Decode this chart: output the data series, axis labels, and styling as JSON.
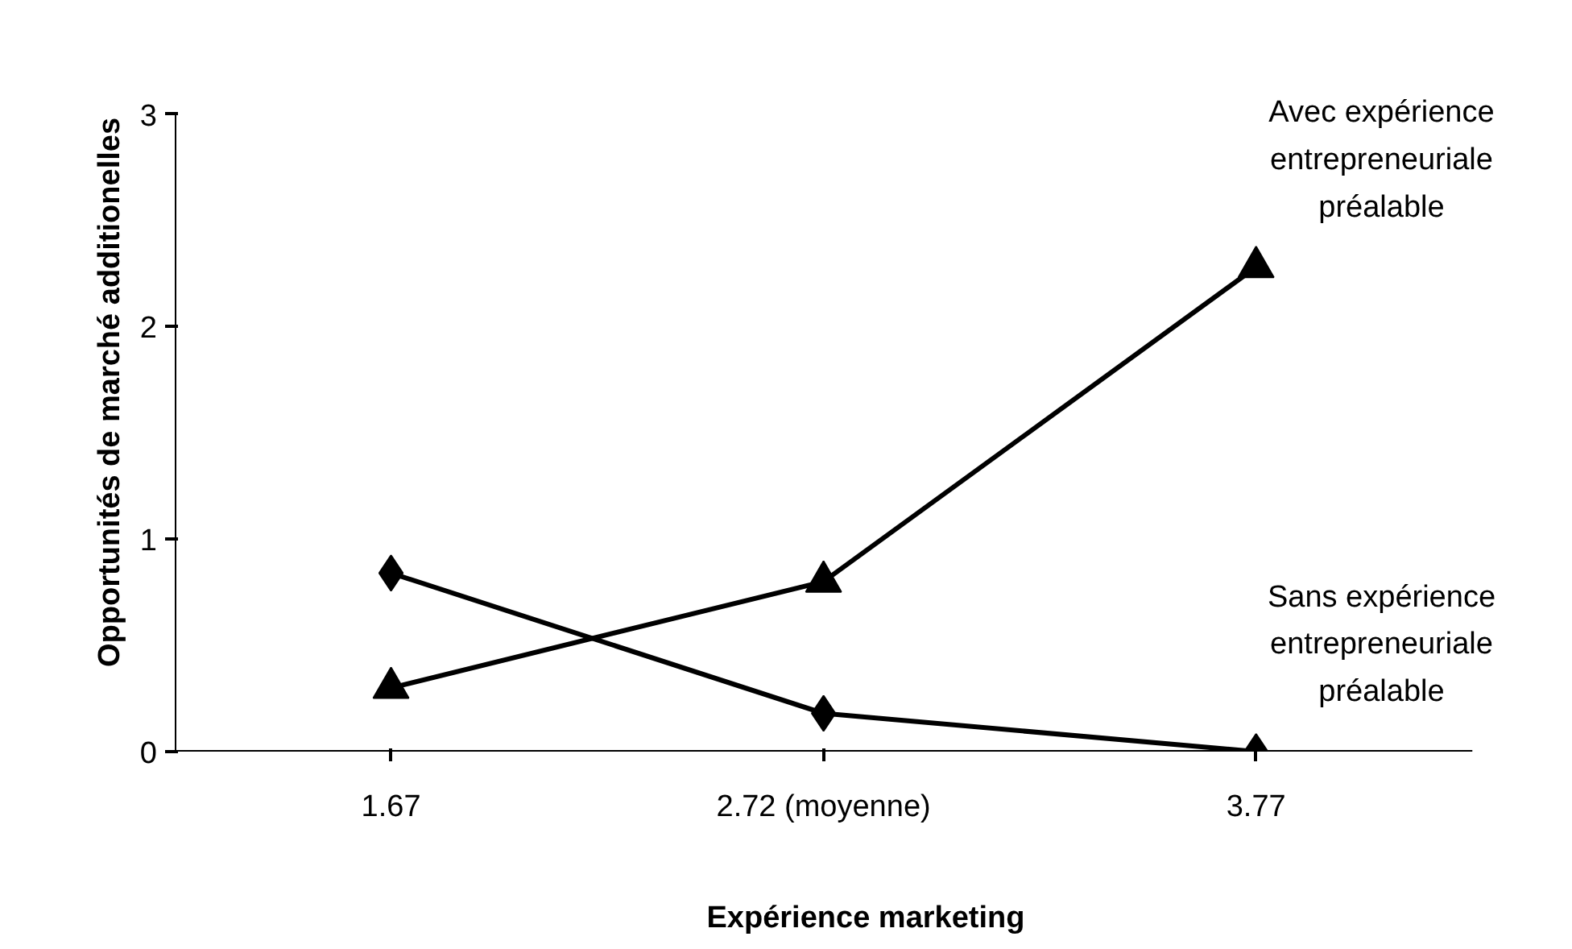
{
  "chart_data": {
    "type": "line",
    "xlabel": "Expérience marketing",
    "ylabel": "Opportunités de marché additionelles",
    "categories": [
      "1.67",
      "2.72 (moyenne)",
      "3.77"
    ],
    "ylim": [
      0,
      3
    ],
    "yticks": [
      0,
      1,
      2,
      3
    ],
    "grid": false,
    "legend": false,
    "series": [
      {
        "name": "Avec expérience\nentrepreneuriale\npréalable",
        "color": "#000000",
        "marker": "triangle",
        "values": [
          0.3,
          0.8,
          2.28
        ]
      },
      {
        "name": "Sans expérience\nentrepreneuriale\npréalable",
        "color": "#000000",
        "marker": "diamond",
        "values": [
          0.84,
          0.18,
          0.0
        ]
      }
    ]
  }
}
